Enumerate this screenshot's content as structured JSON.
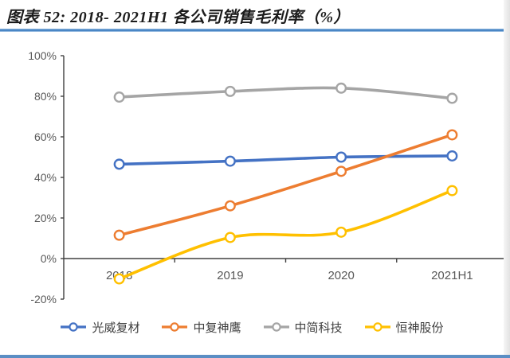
{
  "figure": {
    "title": "图表 52: 2018- 2021H1 各公司销售毛利率（%）"
  },
  "chart_data": {
    "type": "line",
    "title": "2018- 2021H1 各公司销售毛利率（%）",
    "categories": [
      "2018",
      "2019",
      "2020",
      "2021H1"
    ],
    "series": [
      {
        "name": "光威复材",
        "color": "#4472C4",
        "values": [
          46.5,
          48.0,
          50.0,
          50.6
        ]
      },
      {
        "name": "中复神鹰",
        "color": "#ED7D31",
        "values": [
          11.5,
          26.0,
          43.0,
          61.0
        ]
      },
      {
        "name": "中简科技",
        "color": "#A5A5A5",
        "values": [
          79.6,
          82.4,
          84.0,
          79.0
        ]
      },
      {
        "name": "恒神股份",
        "color": "#FFC000",
        "values": [
          -10.0,
          10.4,
          13.0,
          33.5
        ]
      }
    ],
    "xlabel": "",
    "ylabel": "",
    "ylim": [
      -20,
      100
    ],
    "ytick_step": 20,
    "ytick_labels": [
      "-20%",
      "0%",
      "20%",
      "40%",
      "60%",
      "80%",
      "100%"
    ],
    "grid": false,
    "line_style": "smooth",
    "marker": "open-circle",
    "legend_position": "bottom",
    "axis_color": "#404040"
  }
}
